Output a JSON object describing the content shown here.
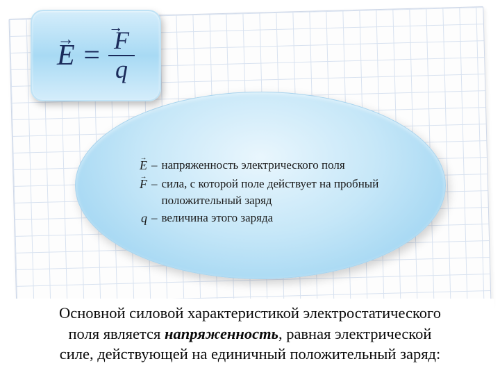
{
  "formula": {
    "lhs": "E",
    "eq": "=",
    "num": "F",
    "den": "q"
  },
  "definitions": {
    "e_sym": "E",
    "e_txt": "напряженность электрического поля",
    "f_sym": "F",
    "f_txt": "сила, с которой поле действует на пробный положительный заряд",
    "q_sym": "q",
    "q_txt": "величина этого заряда",
    "dash": "–"
  },
  "bottom": {
    "line1a": "Основной силовой характеристикой электростатического",
    "line2a": "поля является ",
    "line2b": "напряженность",
    "line2c": ", равная электрической",
    "line3": "силе, действующей на единичный положительный заряд:"
  },
  "style": {
    "grid_color": "#d8e2f0",
    "box_gradient_top": "#d4edfb",
    "box_gradient_mid": "#a8daf4",
    "ellipse_inner": "#e9f6fd",
    "ellipse_outer": "#8fcdef",
    "formula_color": "#1a2a5a",
    "text_color": "#1a1a1a"
  }
}
